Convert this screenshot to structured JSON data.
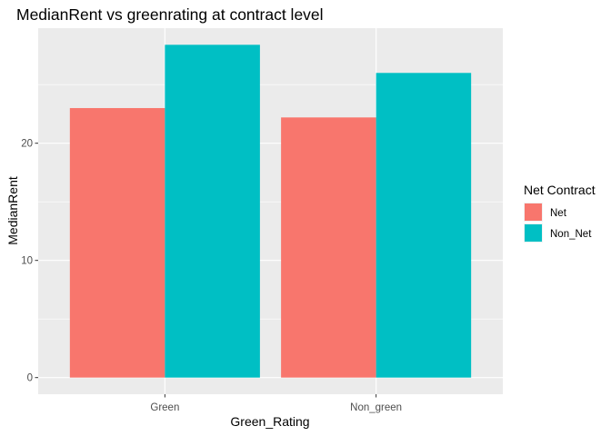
{
  "chart_data": {
    "type": "bar",
    "title": "MedianRent vs greenrating at contract level",
    "xlabel": "Green_Rating",
    "ylabel": "MedianRent",
    "categories": [
      "Green",
      "Non_green"
    ],
    "series": [
      {
        "name": "Net",
        "values": [
          23.0,
          22.2
        ],
        "color": "#F8766D"
      },
      {
        "name": "Non_Net",
        "values": [
          28.4,
          26.0
        ],
        "color": "#00BFC4"
      }
    ],
    "yticks": [
      0,
      10,
      20
    ],
    "ytick_labels": [
      "0",
      "10",
      "20"
    ],
    "ylim": [
      -1.42,
      29.82
    ],
    "grid": true,
    "legend": {
      "title": "Net Contract",
      "position": "right"
    },
    "panel_background": "#EBEBEB",
    "grid_color": "#FFFFFF"
  }
}
